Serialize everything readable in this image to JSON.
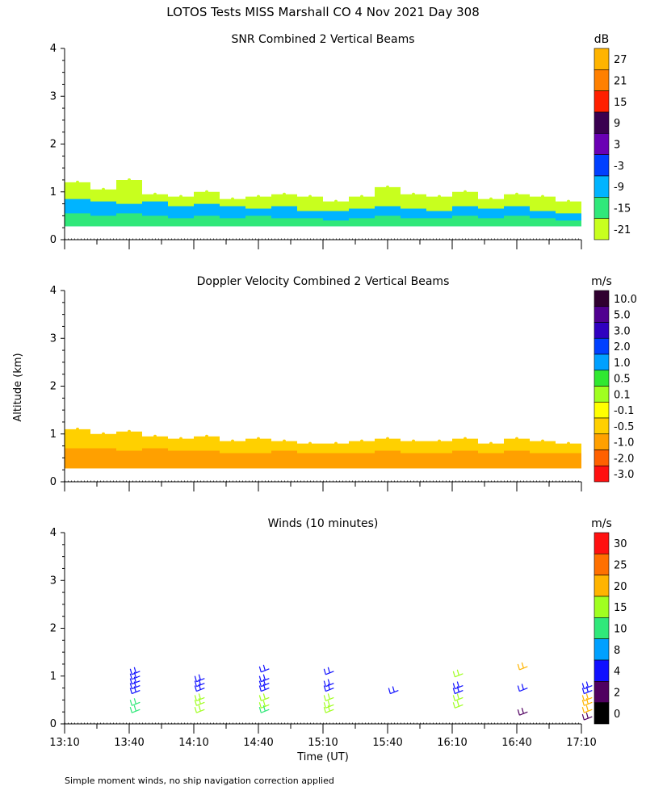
{
  "chart_data": {
    "type": "heatmap",
    "title": "LOTOS Tests MISS Marshall CO   4 Nov 2021 Day 308",
    "footnote": "Simple moment winds, no ship navigation correction applied",
    "shared_ylabel": "Altitude (km)",
    "shared_xlabel": "Time (UT)",
    "x_ticks": [
      "13:10",
      "13:40",
      "14:10",
      "14:40",
      "15:10",
      "15:40",
      "16:10",
      "16:40",
      "17:10"
    ],
    "x_range_min": [
      790,
      1030
    ],
    "ylim_km": [
      0,
      4
    ],
    "y_ticks": [
      "0",
      "1",
      "2",
      "3",
      "4"
    ],
    "panels": [
      {
        "id": "snr",
        "title": "SNR Combined 2 Vertical Beams",
        "units": "dB",
        "colorbar": {
          "labels": [
            "27",
            "21",
            "15",
            "9",
            "3",
            "-3",
            "-9",
            "-15",
            "-21"
          ],
          "colors": [
            "#ffb400",
            "#ff8000",
            "#ff2000",
            "#3a0050",
            "#6a00b4",
            "#0040ff",
            "#00b4ff",
            "#30e87a",
            "#c8ff1e"
          ]
        },
        "layers": [
          {
            "name": "echo-top",
            "top_km": [
              1.2,
              1.05,
              1.25,
              0.95,
              0.9,
              1.0,
              0.85,
              0.9,
              0.95,
              0.9,
              0.8,
              0.9,
              1.1,
              0.95,
              0.9,
              1.0,
              0.85,
              0.95,
              0.9,
              0.8
            ],
            "color": "#c8ff1e"
          },
          {
            "name": "mid-layer",
            "top_km": [
              0.85,
              0.8,
              0.75,
              0.8,
              0.7,
              0.75,
              0.7,
              0.65,
              0.7,
              0.6,
              0.6,
              0.65,
              0.7,
              0.65,
              0.6,
              0.7,
              0.65,
              0.7,
              0.6,
              0.55
            ],
            "color": "#00b4ff"
          },
          {
            "name": "strong-layer",
            "top_km": [
              0.55,
              0.5,
              0.55,
              0.5,
              0.45,
              0.5,
              0.45,
              0.5,
              0.45,
              0.45,
              0.4,
              0.45,
              0.5,
              0.45,
              0.45,
              0.5,
              0.45,
              0.5,
              0.45,
              0.4
            ],
            "color": "#30e87a"
          }
        ]
      },
      {
        "id": "doppler",
        "title": "Doppler Velocity Combined 2 Vertical Beams",
        "units": "m/s",
        "colorbar": {
          "labels": [
            "10.0",
            "5.0",
            "3.0",
            "2.0",
            "1.0",
            "0.5",
            "0.1",
            "-0.1",
            "-0.5",
            "-1.0",
            "-2.0",
            "-3.0"
          ],
          "colors": [
            "#300030",
            "#500090",
            "#3000c0",
            "#0040ff",
            "#00a0ff",
            "#30e830",
            "#a0ff20",
            "#ffff00",
            "#ffd000",
            "#ffa000",
            "#ff6000",
            "#ff1010"
          ]
        },
        "layers": [
          {
            "name": "echo-top",
            "top_km": [
              1.1,
              1.0,
              1.05,
              0.95,
              0.9,
              0.95,
              0.85,
              0.9,
              0.85,
              0.8,
              0.8,
              0.85,
              0.9,
              0.85,
              0.85,
              0.9,
              0.8,
              0.9,
              0.85,
              0.8
            ],
            "color": "#ffd000"
          },
          {
            "name": "lower-layer",
            "top_km": [
              0.7,
              0.7,
              0.65,
              0.7,
              0.65,
              0.65,
              0.6,
              0.6,
              0.65,
              0.6,
              0.6,
              0.6,
              0.65,
              0.6,
              0.6,
              0.65,
              0.6,
              0.65,
              0.6,
              0.6
            ],
            "color": "#ffa000"
          }
        ]
      },
      {
        "id": "winds",
        "title": "Winds (10 minutes)",
        "units": "m/s",
        "colorbar": {
          "labels": [
            "30",
            "25",
            "20",
            "15",
            "10",
            "8",
            "4",
            "2",
            "0"
          ],
          "colors": [
            "#ff1010",
            "#ff7000",
            "#ffb400",
            "#a0ff20",
            "#30e87a",
            "#00a0ff",
            "#1010ff",
            "#500060",
            "#000000"
          ]
        },
        "barbs": [
          {
            "t": 825,
            "alt_km": [
              1.1,
              1.0,
              0.9,
              0.8,
              0.7,
              0.45,
              0.3
            ],
            "color": [
              "#1010ff",
              "#1010ff",
              "#1010ff",
              "#1010ff",
              "#1010ff",
              "#30e87a",
              "#30e87a"
            ]
          },
          {
            "t": 855,
            "alt_km": [
              0.95,
              0.85,
              0.75,
              0.55,
              0.45,
              0.3
            ],
            "color": [
              "#1010ff",
              "#1010ff",
              "#1010ff",
              "#a0ff20",
              "#a0ff20",
              "#a0ff20"
            ]
          },
          {
            "t": 885,
            "alt_km": [
              1.15,
              0.95,
              0.85,
              0.75,
              0.55,
              0.4,
              0.3
            ],
            "color": [
              "#1010ff",
              "#1010ff",
              "#1010ff",
              "#1010ff",
              "#a0ff20",
              "#a0ff20",
              "#30e87a"
            ]
          },
          {
            "t": 915,
            "alt_km": [
              1.1,
              0.85,
              0.75,
              0.55,
              0.4,
              0.3
            ],
            "color": [
              "#1010ff",
              "#1010ff",
              "#1010ff",
              "#a0ff20",
              "#a0ff20",
              "#a0ff20"
            ]
          },
          {
            "t": 945,
            "alt_km": [
              0.7
            ],
            "color": [
              "#1010ff"
            ]
          },
          {
            "t": 975,
            "alt_km": [
              1.05,
              0.8,
              0.7,
              0.55,
              0.4
            ],
            "color": [
              "#a0ff20",
              "#1010ff",
              "#1010ff",
              "#a0ff20",
              "#a0ff20"
            ]
          },
          {
            "t": 1005,
            "alt_km": [
              1.2,
              0.75,
              0.25
            ],
            "color": [
              "#ffb400",
              "#1010ff",
              "#500060"
            ]
          },
          {
            "t": 1035,
            "alt_km": [
              0.8,
              0.7,
              0.55,
              0.45,
              0.3,
              0.15
            ],
            "color": [
              "#1010ff",
              "#1010ff",
              "#ffb400",
              "#ffb400",
              "#ffb400",
              "#500060"
            ]
          }
        ]
      }
    ]
  }
}
